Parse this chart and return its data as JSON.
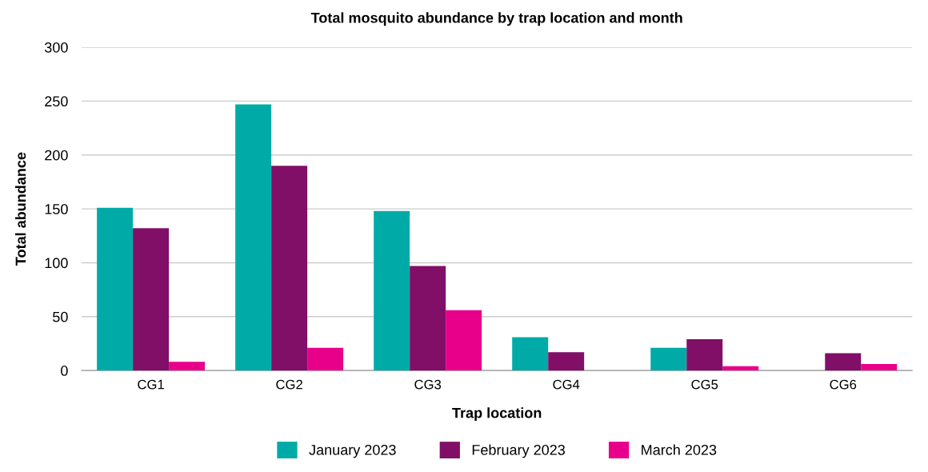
{
  "chart_data": {
    "type": "bar",
    "title": "Total mosquito abundance by trap location and month",
    "xlabel": "Trap location",
    "ylabel": "Total abundance",
    "categories": [
      "CG1",
      "CG2",
      "CG3",
      "CG4",
      "CG5",
      "CG6"
    ],
    "series": [
      {
        "name": "January 2023",
        "color": "#00aba7",
        "values": [
          151,
          247,
          148,
          31,
          21,
          0
        ]
      },
      {
        "name": "February 2023",
        "color": "#810f67",
        "values": [
          132,
          190,
          97,
          17,
          29,
          16
        ]
      },
      {
        "name": "March 2023",
        "color": "#e8008b",
        "values": [
          8,
          21,
          56,
          0,
          4,
          6
        ]
      }
    ],
    "ylim": [
      0,
      300
    ],
    "yticks": [
      0,
      50,
      100,
      150,
      200,
      250,
      300
    ],
    "grid": "y",
    "legend": "bottom"
  }
}
